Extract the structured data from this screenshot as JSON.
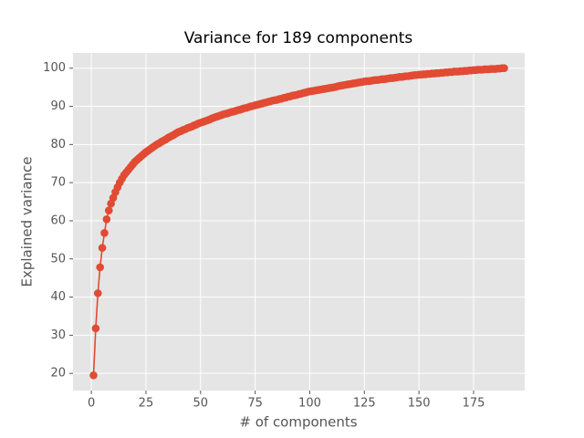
{
  "chart_data": {
    "type": "line",
    "title": "Variance for 189 components",
    "x_label": "# of components",
    "y_label": "Explained variance",
    "xlim": [
      -8.4,
      198.4
    ],
    "ylim": [
      15.5,
      104
    ],
    "xticks": [
      0,
      25,
      50,
      75,
      100,
      125,
      150,
      175
    ],
    "yticks": [
      20,
      30,
      40,
      50,
      60,
      70,
      80,
      90,
      100
    ],
    "grid": true,
    "marker": "o",
    "series": [
      {
        "color": "#e24a33",
        "x": [
          1,
          2,
          3,
          4,
          5,
          6,
          7,
          8,
          9,
          10,
          11,
          12,
          13,
          14,
          15,
          16,
          17,
          18,
          19,
          20,
          21,
          22,
          23,
          24,
          25,
          26,
          27,
          28,
          29,
          30,
          31,
          32,
          33,
          34,
          35,
          36,
          37,
          38,
          39,
          40,
          41,
          42,
          43,
          44,
          45,
          46,
          47,
          48,
          49,
          50,
          51,
          52,
          53,
          54,
          55,
          56,
          57,
          58,
          59,
          60,
          61,
          62,
          63,
          64,
          65,
          66,
          67,
          68,
          69,
          70,
          71,
          72,
          73,
          74,
          75,
          76,
          77,
          78,
          79,
          80,
          81,
          82,
          83,
          84,
          85,
          86,
          87,
          88,
          89,
          90,
          91,
          92,
          93,
          94,
          95,
          96,
          97,
          98,
          99,
          100,
          101,
          102,
          103,
          104,
          105,
          106,
          107,
          108,
          109,
          110,
          111,
          112,
          113,
          114,
          115,
          116,
          117,
          118,
          119,
          120,
          121,
          122,
          123,
          124,
          125,
          126,
          127,
          128,
          129,
          130,
          131,
          132,
          133,
          134,
          135,
          136,
          137,
          138,
          139,
          140,
          141,
          142,
          143,
          144,
          145,
          146,
          147,
          148,
          149,
          150,
          151,
          152,
          153,
          154,
          155,
          156,
          157,
          158,
          159,
          160,
          161,
          162,
          163,
          164,
          165,
          166,
          167,
          168,
          169,
          170,
          171,
          172,
          173,
          174,
          175,
          176,
          177,
          178,
          179,
          180,
          181,
          182,
          183,
          184,
          185,
          186,
          187,
          188,
          189
        ],
        "values": [
          19.5,
          31.8,
          41.0,
          47.8,
          52.9,
          56.8,
          60.4,
          62.7,
          64.5,
          66.0,
          67.5,
          68.8,
          70.0,
          71.0,
          72.0,
          72.7,
          73.4,
          74.1,
          74.8,
          75.5,
          76.0,
          76.5,
          77.0,
          77.5,
          78.0,
          78.4,
          78.8,
          79.2,
          79.6,
          80.0,
          80.3,
          80.7,
          81.0,
          81.3,
          81.7,
          82.0,
          82.3,
          82.6,
          83.0,
          83.3,
          83.5,
          83.8,
          84.0,
          84.3,
          84.5,
          84.7,
          85.0,
          85.2,
          85.5,
          85.7,
          85.9,
          86.1,
          86.3,
          86.5,
          86.8,
          87.0,
          87.2,
          87.4,
          87.6,
          87.8,
          88.0,
          88.1,
          88.3,
          88.5,
          88.6,
          88.8,
          89.0,
          89.1,
          89.3,
          89.5,
          89.6,
          89.8,
          90.0,
          90.1,
          90.3,
          90.4,
          90.6,
          90.7,
          90.9,
          91.0,
          91.2,
          91.3,
          91.5,
          91.6,
          91.7,
          91.9,
          92.0,
          92.2,
          92.3,
          92.5,
          92.6,
          92.8,
          92.9,
          93.0,
          93.2,
          93.3,
          93.5,
          93.6,
          93.8,
          93.9,
          94.0,
          94.1,
          94.2,
          94.3,
          94.4,
          94.5,
          94.6,
          94.7,
          94.8,
          94.9,
          95.0,
          95.1,
          95.3,
          95.4,
          95.5,
          95.6,
          95.7,
          95.8,
          95.9,
          96.0,
          96.1,
          96.2,
          96.3,
          96.4,
          96.5,
          96.6,
          96.6,
          96.7,
          96.8,
          96.9,
          96.9,
          97.0,
          97.1,
          97.1,
          97.2,
          97.3,
          97.4,
          97.4,
          97.5,
          97.6,
          97.7,
          97.7,
          97.8,
          97.9,
          97.9,
          98.0,
          98.1,
          98.2,
          98.2,
          98.3,
          98.3,
          98.4,
          98.4,
          98.5,
          98.5,
          98.6,
          98.6,
          98.7,
          98.7,
          98.8,
          98.8,
          98.9,
          98.9,
          99.0,
          99.0,
          99.1,
          99.1,
          99.1,
          99.2,
          99.2,
          99.3,
          99.3,
          99.4,
          99.4,
          99.5,
          99.5,
          99.6,
          99.6,
          99.6,
          99.7,
          99.7,
          99.7,
          99.8,
          99.8,
          99.8,
          99.9,
          99.9,
          100.0,
          100.0
        ]
      }
    ]
  }
}
